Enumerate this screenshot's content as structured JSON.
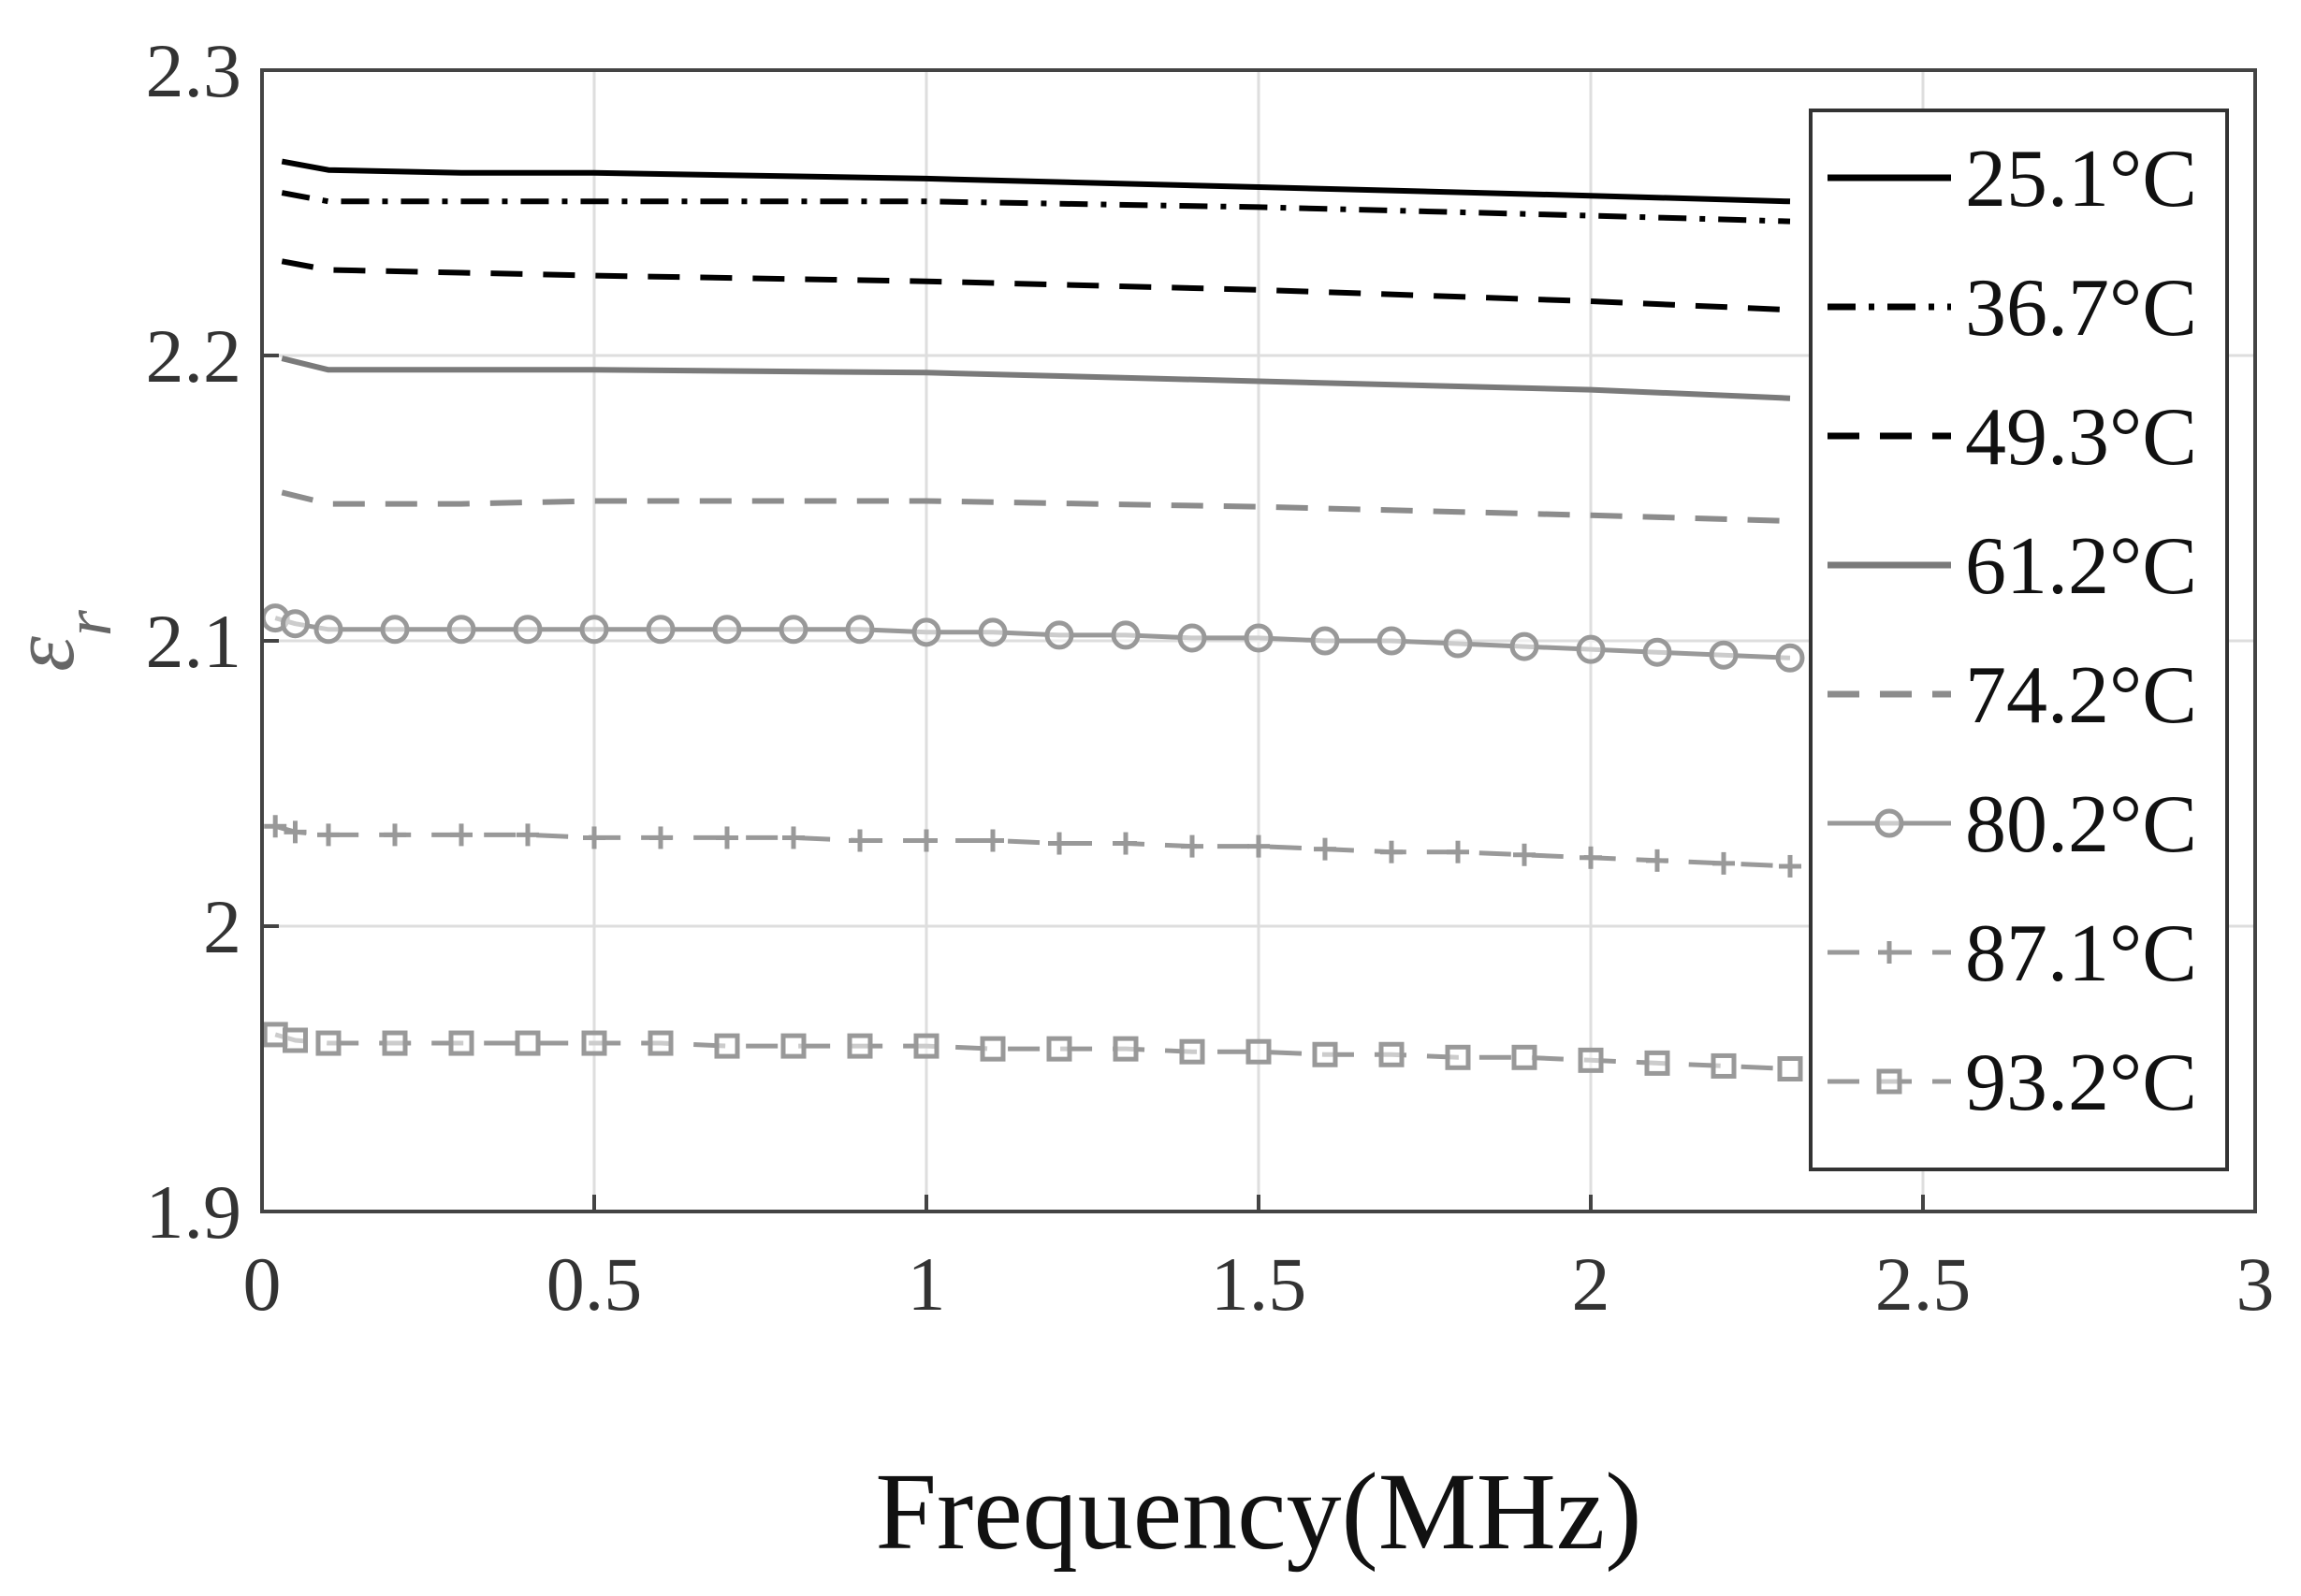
{
  "chart_data": {
    "type": "line",
    "xlabel": "Frequency(MHz)",
    "ylabel_base": "ε",
    "ylabel_sub": "r",
    "xlim": [
      0,
      3
    ],
    "ylim": [
      1.9,
      2.3
    ],
    "x_ticks": [
      {
        "value": 0,
        "label": "0"
      },
      {
        "value": 0.5,
        "label": "0.5"
      },
      {
        "value": 1,
        "label": "1"
      },
      {
        "value": 1.5,
        "label": "1.5"
      },
      {
        "value": 2,
        "label": "2"
      },
      {
        "value": 2.5,
        "label": "2.5"
      },
      {
        "value": 3,
        "label": "3"
      }
    ],
    "y_ticks": [
      {
        "value": 1.9,
        "label": "1.9"
      },
      {
        "value": 2.0,
        "label": "2"
      },
      {
        "value": 2.1,
        "label": "2.1"
      },
      {
        "value": 2.2,
        "label": "2.2"
      },
      {
        "value": 2.3,
        "label": "2.3"
      }
    ],
    "grid": true,
    "legend_position": "right",
    "series": [
      {
        "name": "25.1°C",
        "color": "#000000",
        "dash": "solid",
        "marker": "none",
        "x": [
          0.03,
          0.1,
          0.3,
          0.5,
          1.0,
          1.5,
          2.0,
          2.3
        ],
        "y": [
          2.268,
          2.265,
          2.264,
          2.264,
          2.262,
          2.259,
          2.256,
          2.254
        ]
      },
      {
        "name": "36.7°C",
        "color": "#000000",
        "dash": "dashdot",
        "marker": "none",
        "x": [
          0.03,
          0.1,
          0.3,
          0.5,
          1.0,
          1.5,
          2.0,
          2.3
        ],
        "y": [
          2.257,
          2.254,
          2.254,
          2.254,
          2.254,
          2.252,
          2.249,
          2.247
        ]
      },
      {
        "name": "49.3°C",
        "color": "#000000",
        "dash": "dashed",
        "marker": "none",
        "x": [
          0.03,
          0.1,
          0.3,
          0.5,
          1.0,
          1.5,
          2.0,
          2.3
        ],
        "y": [
          2.233,
          2.23,
          2.229,
          2.228,
          2.226,
          2.223,
          2.219,
          2.216
        ]
      },
      {
        "name": "61.2°C",
        "color": "#7a7a7a",
        "dash": "solid",
        "marker": "none",
        "x": [
          0.03,
          0.1,
          0.3,
          0.5,
          1.0,
          1.5,
          2.0,
          2.3
        ],
        "y": [
          2.199,
          2.195,
          2.195,
          2.195,
          2.194,
          2.191,
          2.188,
          2.185
        ]
      },
      {
        "name": "74.2°C",
        "color": "#8c8c8c",
        "dash": "dashed",
        "marker": "none",
        "x": [
          0.03,
          0.1,
          0.3,
          0.5,
          1.0,
          1.5,
          2.0,
          2.3
        ],
        "y": [
          2.152,
          2.148,
          2.148,
          2.149,
          2.149,
          2.147,
          2.144,
          2.142
        ]
      },
      {
        "name": "80.2°C",
        "color": "#999999",
        "dash": "solid",
        "marker": "circle",
        "x": [
          0.02,
          0.05,
          0.1,
          0.2,
          0.3,
          0.4,
          0.5,
          0.6,
          0.7,
          0.8,
          0.9,
          1.0,
          1.1,
          1.2,
          1.3,
          1.4,
          1.5,
          1.6,
          1.7,
          1.8,
          1.9,
          2.0,
          2.1,
          2.2,
          2.3
        ],
        "y": [
          2.108,
          2.106,
          2.104,
          2.104,
          2.104,
          2.104,
          2.104,
          2.104,
          2.104,
          2.104,
          2.104,
          2.103,
          2.103,
          2.102,
          2.102,
          2.101,
          2.101,
          2.1,
          2.1,
          2.099,
          2.098,
          2.097,
          2.096,
          2.095,
          2.094
        ]
      },
      {
        "name": "87.1°C",
        "color": "#999999",
        "dash": "dashed",
        "marker": "plus",
        "x": [
          0.02,
          0.05,
          0.1,
          0.2,
          0.3,
          0.4,
          0.5,
          0.6,
          0.7,
          0.8,
          0.9,
          1.0,
          1.1,
          1.2,
          1.3,
          1.4,
          1.5,
          1.6,
          1.7,
          1.8,
          1.9,
          2.0,
          2.1,
          2.2,
          2.3
        ],
        "y": [
          2.035,
          2.033,
          2.032,
          2.032,
          2.032,
          2.032,
          2.031,
          2.031,
          2.031,
          2.031,
          2.03,
          2.03,
          2.03,
          2.029,
          2.029,
          2.028,
          2.028,
          2.027,
          2.026,
          2.026,
          2.025,
          2.024,
          2.023,
          2.022,
          2.021
        ]
      },
      {
        "name": "93.2°C",
        "color": "#999999",
        "dash": "dashed",
        "marker": "square",
        "x": [
          0.02,
          0.05,
          0.1,
          0.2,
          0.3,
          0.4,
          0.5,
          0.6,
          0.7,
          0.8,
          0.9,
          1.0,
          1.1,
          1.2,
          1.3,
          1.4,
          1.5,
          1.6,
          1.7,
          1.8,
          1.9,
          2.0,
          2.1,
          2.2,
          2.3
        ],
        "y": [
          1.962,
          1.96,
          1.959,
          1.959,
          1.959,
          1.959,
          1.959,
          1.959,
          1.958,
          1.958,
          1.958,
          1.958,
          1.957,
          1.957,
          1.957,
          1.956,
          1.956,
          1.955,
          1.955,
          1.954,
          1.954,
          1.953,
          1.952,
          1.951,
          1.95
        ]
      }
    ]
  }
}
